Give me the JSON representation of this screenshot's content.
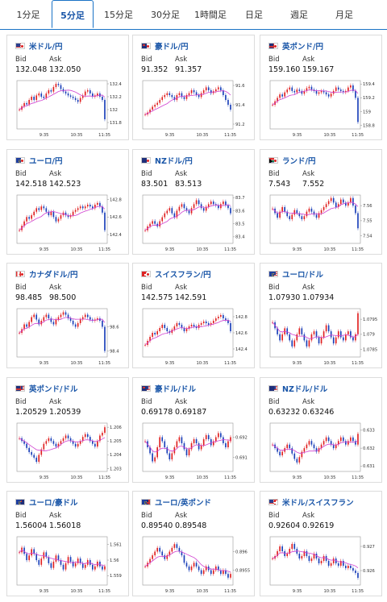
{
  "tabs": [
    {
      "label": "1分足"
    },
    {
      "label": "5分足",
      "active": true
    },
    {
      "label": "15分足"
    },
    {
      "label": "30分足"
    },
    {
      "label": "1時間足"
    },
    {
      "label": "日足"
    },
    {
      "label": "週足"
    },
    {
      "label": "月足"
    }
  ],
  "labels": {
    "bid": "Bid",
    "ask": "Ask"
  },
  "colors": {
    "up": "#e02020",
    "down": "#1a3fb8",
    "ma": "#d040d0",
    "accent": "#1a73c6"
  },
  "pairs": [
    {
      "name": "米ドル/円",
      "flag": "us-jp",
      "bid": "132.048",
      "ask": "132.050",
      "ticks": [
        "132.4",
        "132.2",
        "132",
        "131.8"
      ],
      "ylim": [
        131.7,
        132.45
      ],
      "x_labels": [
        "9:35",
        "10:35",
        "11:35"
      ],
      "ohlc": [
        132.0,
        132.05,
        132.1,
        132.08,
        132.15,
        132.2,
        132.15,
        132.22,
        132.25,
        132.2,
        132.18,
        132.25,
        132.3,
        132.28,
        132.35,
        132.4,
        132.38,
        132.32,
        132.28,
        132.25,
        132.22,
        132.2,
        132.18,
        132.15,
        132.12,
        132.18,
        132.22,
        132.28,
        132.3,
        132.25,
        132.2,
        132.22,
        132.25,
        132.2,
        132.15,
        131.85
      ]
    },
    {
      "name": "豪ドル/円",
      "flag": "au-jp",
      "bid": "91.352",
      "ask": "91.357",
      "ticks": [
        "91.6",
        "91.4",
        "91.2"
      ],
      "ylim": [
        91.15,
        91.65
      ],
      "x_labels": [
        "9:35",
        "10:35",
        "11:35"
      ],
      "ohlc": [
        91.3,
        91.32,
        91.35,
        91.38,
        91.4,
        91.42,
        91.45,
        91.48,
        91.5,
        91.52,
        91.5,
        91.48,
        91.45,
        91.5,
        91.52,
        91.48,
        91.46,
        91.5,
        91.52,
        91.55,
        91.53,
        91.5,
        91.48,
        91.52,
        91.55,
        91.58,
        91.55,
        91.52,
        91.54,
        91.56,
        91.58,
        91.55,
        91.5,
        91.45,
        91.4,
        91.35
      ]
    },
    {
      "name": "英ポンド/円",
      "flag": "uk-jp",
      "bid": "159.160",
      "ask": "159.167",
      "ticks": [
        "159.4",
        "159.2",
        "159",
        "158.8"
      ],
      "ylim": [
        158.75,
        159.45
      ],
      "x_labels": [
        "9:35",
        "10:35",
        "11:35"
      ],
      "ohlc": [
        159.1,
        159.15,
        159.2,
        159.25,
        159.22,
        159.28,
        159.32,
        159.35,
        159.3,
        159.28,
        159.32,
        159.3,
        159.26,
        159.3,
        159.34,
        159.36,
        159.32,
        159.3,
        159.26,
        159.28,
        159.3,
        159.28,
        159.25,
        159.22,
        159.26,
        159.3,
        159.35,
        159.32,
        159.3,
        159.28,
        159.3,
        159.35,
        159.38,
        159.3,
        159.2,
        158.85
      ]
    },
    {
      "name": "ユーロ/円",
      "flag": "eu-jp",
      "bid": "142.518",
      "ask": "142.523",
      "ticks": [
        "142.8",
        "142.6",
        "142.4"
      ],
      "ylim": [
        142.3,
        142.85
      ],
      "x_labels": [
        "9:35",
        "10:35",
        "11:35"
      ],
      "ohlc": [
        142.45,
        142.5,
        142.55,
        142.6,
        142.58,
        142.62,
        142.66,
        142.7,
        142.68,
        142.72,
        142.7,
        142.66,
        142.62,
        142.66,
        142.6,
        142.55,
        142.58,
        142.62,
        142.65,
        142.62,
        142.6,
        142.62,
        142.66,
        142.68,
        142.7,
        142.72,
        142.7,
        142.72,
        142.74,
        142.72,
        142.7,
        142.74,
        142.76,
        142.72,
        142.65,
        142.45
      ]
    },
    {
      "name": "NZドル/円",
      "flag": "nz-jp",
      "bid": "83.501",
      "ask": "83.513",
      "ticks": [
        "83.7",
        "83.6",
        "83.5",
        "83.4"
      ],
      "ylim": [
        83.35,
        83.72
      ],
      "x_labels": [
        "9:35",
        "10:35",
        "11:35"
      ],
      "ohlc": [
        83.45,
        83.48,
        83.5,
        83.52,
        83.5,
        83.48,
        83.52,
        83.55,
        83.58,
        83.6,
        83.62,
        83.58,
        83.55,
        83.6,
        83.63,
        83.65,
        83.62,
        83.6,
        83.58,
        83.62,
        83.65,
        83.68,
        83.65,
        83.62,
        83.6,
        83.63,
        83.65,
        83.67,
        83.65,
        83.64,
        83.62,
        83.65,
        83.67,
        83.64,
        83.62,
        83.58
      ]
    },
    {
      "name": "ランド/円",
      "flag": "za-jp",
      "bid": "7.543",
      "ask": "7.552",
      "ticks": [
        "7.56",
        "7.55",
        "7.54"
      ],
      "ylim": [
        7.535,
        7.567
      ],
      "x_labels": [
        "9:35",
        "10:35",
        "11:35"
      ],
      "ohlc": [
        7.558,
        7.555,
        7.552,
        7.556,
        7.559,
        7.556,
        7.553,
        7.551,
        7.554,
        7.557,
        7.555,
        7.553,
        7.551,
        7.553,
        7.556,
        7.558,
        7.556,
        7.554,
        7.552,
        7.555,
        7.557,
        7.559,
        7.561,
        7.563,
        7.565,
        7.562,
        7.559,
        7.561,
        7.564,
        7.562,
        7.56,
        7.562,
        7.565,
        7.56,
        7.555,
        7.545
      ]
    },
    {
      "name": "カナダドル/円",
      "flag": "ca-jp",
      "bid": "98.485",
      "ask": "98.500",
      "ticks": [
        "98.6",
        "98.4"
      ],
      "ylim": [
        98.35,
        98.75
      ],
      "x_labels": [
        "9:35",
        "10:35",
        "11:35"
      ],
      "ohlc": [
        98.55,
        98.58,
        98.62,
        98.6,
        98.64,
        98.68,
        98.7,
        98.66,
        98.62,
        98.65,
        98.68,
        98.7,
        98.67,
        98.64,
        98.62,
        98.66,
        98.68,
        98.7,
        98.72,
        98.7,
        98.67,
        98.65,
        98.62,
        98.6,
        98.63,
        98.66,
        98.68,
        98.7,
        98.68,
        98.66,
        98.65,
        98.66,
        98.67,
        98.65,
        98.6,
        98.4
      ]
    },
    {
      "name": "スイスフラン/円",
      "flag": "ch-jp",
      "bid": "142.575",
      "ask": "142.591",
      "ticks": [
        "142.8",
        "142.6",
        "142.4"
      ],
      "ylim": [
        142.3,
        142.9
      ],
      "x_labels": [
        "9:35",
        "10:35",
        "11:35"
      ],
      "ohlc": [
        142.45,
        142.5,
        142.55,
        142.6,
        142.58,
        142.62,
        142.66,
        142.7,
        142.66,
        142.62,
        142.6,
        142.64,
        142.68,
        142.72,
        142.7,
        142.66,
        142.62,
        142.65,
        142.68,
        142.7,
        142.68,
        142.66,
        142.7,
        142.72,
        142.74,
        142.72,
        142.7,
        142.72,
        142.75,
        142.78,
        142.8,
        142.82,
        142.78,
        142.76,
        142.72,
        142.62
      ]
    },
    {
      "name": "ユーロ/ドル",
      "flag": "eu-us",
      "bid": "1.07930",
      "ask": "1.07934",
      "ticks": [
        "1.0795",
        "1.079",
        "1.0785"
      ],
      "ylim": [
        1.07825,
        1.07985
      ],
      "x_labels": [
        "9:35",
        "10:35",
        "11:35"
      ],
      "ohlc": [
        1.0794,
        1.0792,
        1.079,
        1.0788,
        1.079,
        1.0792,
        1.079,
        1.0788,
        1.0786,
        1.0788,
        1.079,
        1.0792,
        1.079,
        1.0788,
        1.0786,
        1.0788,
        1.079,
        1.0791,
        1.0789,
        1.0787,
        1.0789,
        1.0791,
        1.0793,
        1.0791,
        1.0789,
        1.0787,
        1.0789,
        1.0791,
        1.0789,
        1.0788,
        1.079,
        1.0791,
        1.0789,
        1.0788,
        1.079,
        1.0797
      ]
    },
    {
      "name": "英ポンド/ドル",
      "flag": "uk-us",
      "bid": "1.20529",
      "ask": "1.20539",
      "ticks": [
        "1.206",
        "1.205",
        "1.204",
        "1.203"
      ],
      "ylim": [
        1.2028,
        1.2063
      ],
      "x_labels": [
        "9:35",
        "10:35",
        "11:35"
      ],
      "ohlc": [
        1.2052,
        1.205,
        1.2048,
        1.2045,
        1.2042,
        1.204,
        1.2038,
        1.2035,
        1.204,
        1.2044,
        1.2048,
        1.205,
        1.2052,
        1.205,
        1.2048,
        1.2046,
        1.2048,
        1.205,
        1.2052,
        1.2054,
        1.2052,
        1.205,
        1.2048,
        1.2046,
        1.2048,
        1.205,
        1.2053,
        1.2055,
        1.2053,
        1.205,
        1.2048,
        1.2046,
        1.205,
        1.2054,
        1.2056,
        1.206
      ]
    },
    {
      "name": "豪ドル/ドル",
      "flag": "au-us",
      "bid": "0.69178",
      "ask": "0.69187",
      "ticks": [
        "0.692",
        "0.691"
      ],
      "ylim": [
        0.6903,
        0.6927
      ],
      "x_labels": [
        "9:35",
        "10:35",
        "11:35"
      ],
      "ohlc": [
        0.6918,
        0.6915,
        0.6912,
        0.6908,
        0.691,
        0.6915,
        0.692,
        0.6918,
        0.6915,
        0.6912,
        0.6909,
        0.6912,
        0.6915,
        0.6918,
        0.692,
        0.6917,
        0.6914,
        0.6911,
        0.6914,
        0.6917,
        0.6919,
        0.6917,
        0.6914,
        0.6916,
        0.6919,
        0.6921,
        0.6919,
        0.6916,
        0.6918,
        0.692,
        0.6922,
        0.692,
        0.6917,
        0.6915,
        0.6918,
        0.692
      ]
    },
    {
      "name": "NZドル/ドル",
      "flag": "nz-us",
      "bid": "0.63232",
      "ask": "0.63246",
      "ticks": [
        "0.633",
        "0.632",
        "0.631"
      ],
      "ylim": [
        0.6307,
        0.6334
      ],
      "x_labels": [
        "9:35",
        "10:35",
        "11:35"
      ],
      "ohlc": [
        0.6322,
        0.632,
        0.6318,
        0.6316,
        0.6318,
        0.632,
        0.6322,
        0.632,
        0.6317,
        0.6314,
        0.6312,
        0.6315,
        0.6318,
        0.632,
        0.6322,
        0.6324,
        0.6322,
        0.632,
        0.6318,
        0.632,
        0.6322,
        0.6324,
        0.6326,
        0.6324,
        0.6322,
        0.632,
        0.6322,
        0.6324,
        0.6326,
        0.6324,
        0.6322,
        0.6324,
        0.6326,
        0.6324,
        0.6322,
        0.6328
      ]
    },
    {
      "name": "ユーロ/豪ドル",
      "flag": "eu-au",
      "bid": "1.56004",
      "ask": "1.56018",
      "ticks": [
        "1.561",
        "1.56",
        "1.559"
      ],
      "ylim": [
        1.5584,
        1.5615
      ],
      "x_labels": [
        "9:35",
        "10:35",
        "11:35"
      ],
      "ohlc": [
        1.5605,
        1.5608,
        1.5604,
        1.56,
        1.5603,
        1.5607,
        1.5604,
        1.56,
        1.5597,
        1.5601,
        1.5605,
        1.5602,
        1.5598,
        1.5595,
        1.5599,
        1.5603,
        1.56,
        1.5597,
        1.5594,
        1.5598,
        1.5602,
        1.5599,
        1.5596,
        1.5598,
        1.5601,
        1.5598,
        1.5595,
        1.5597,
        1.56,
        1.5597,
        1.5594,
        1.5596,
        1.5599,
        1.5596,
        1.5594,
        1.5596
      ]
    },
    {
      "name": "ユーロ/英ポンド",
      "flag": "eu-uk",
      "bid": "0.89540",
      "ask": "0.89548",
      "ticks": [
        "0.896",
        "0.8955"
      ],
      "ylim": [
        0.8951,
        0.8964
      ],
      "x_labels": [
        "9:35",
        "10:35",
        "11:35"
      ],
      "ohlc": [
        0.8956,
        0.8957,
        0.8958,
        0.8959,
        0.896,
        0.8961,
        0.896,
        0.8959,
        0.8958,
        0.8959,
        0.896,
        0.8961,
        0.8962,
        0.8961,
        0.896,
        0.8959,
        0.8957,
        0.8956,
        0.8955,
        0.8956,
        0.8957,
        0.8956,
        0.8955,
        0.8954,
        0.8955,
        0.8956,
        0.8955,
        0.8954,
        0.8955,
        0.8956,
        0.8955,
        0.8954,
        0.8955,
        0.8954,
        0.8953,
        0.8954
      ]
    },
    {
      "name": "米ドル/スイスフラン",
      "flag": "us-ch",
      "bid": "0.92604",
      "ask": "0.92619",
      "ticks": [
        "0.927",
        "0.926"
      ],
      "ylim": [
        0.9254,
        0.9274
      ],
      "x_labels": [
        "9:35",
        "10:35",
        "11:35"
      ],
      "ohlc": [
        0.9265,
        0.9266,
        0.9268,
        0.927,
        0.9268,
        0.9266,
        0.9267,
        0.9269,
        0.9271,
        0.9269,
        0.9267,
        0.9265,
        0.9266,
        0.9268,
        0.9266,
        0.9264,
        0.9265,
        0.9267,
        0.9265,
        0.9263,
        0.9264,
        0.9266,
        0.9264,
        0.9262,
        0.9263,
        0.9265,
        0.9263,
        0.9262,
        0.9264,
        0.9262,
        0.9261,
        0.9262,
        0.9261,
        0.926,
        0.9259,
        0.9257
      ]
    }
  ]
}
